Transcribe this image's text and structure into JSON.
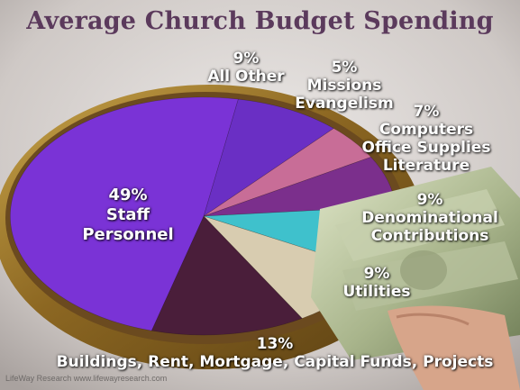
{
  "chart_data": {
    "type": "pie",
    "title": "Average Church Budget Spending",
    "slices": [
      {
        "percent_label": "49%",
        "lines": [
          "Staff",
          "Personnel"
        ],
        "value": 49,
        "color": "#7a33d6"
      },
      {
        "percent_label": "9%",
        "lines": [
          "All Other"
        ],
        "value": 9,
        "color": "#6a2fc4"
      },
      {
        "percent_label": "5%",
        "lines": [
          "Missions",
          "Evangelism"
        ],
        "value": 5,
        "color": "#c86d97"
      },
      {
        "percent_label": "7%",
        "lines": [
          "Computers",
          "Office Supplies",
          "Literature"
        ],
        "value": 7,
        "color": "#7b2f8c"
      },
      {
        "percent_label": "9%",
        "lines": [
          "Denominational",
          "Contributions"
        ],
        "value": 9,
        "color": "#3fc1cc"
      },
      {
        "percent_label": "9%",
        "lines": [
          "Utilities"
        ],
        "value": 9,
        "color": "#d8ccb0"
      },
      {
        "percent_label": "13%",
        "lines": [
          "Buildings, Rent, Mortgage, Capital Funds, Projects"
        ],
        "value": 13,
        "color": "#4a1e3a"
      }
    ]
  },
  "footer": "LifeWay Research  www.lifewayresearch.com",
  "colors": {
    "title": "#5b3a5c",
    "plate_rim": "#a5822e",
    "plate_inner": "#6b4a1f"
  }
}
